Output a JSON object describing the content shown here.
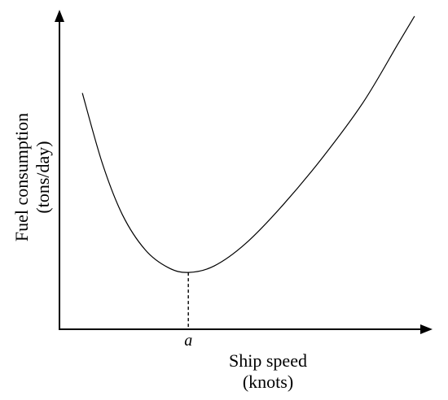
{
  "chart_data": {
    "type": "line",
    "title": "",
    "xlabel": {
      "line1": "Ship speed",
      "line2": "(knots)"
    },
    "ylabel": {
      "line1": "Fuel consumption",
      "line2": "(tons/day)"
    },
    "x_tick_label": "a",
    "x_tick_value": 4.5,
    "xlim": [
      0,
      13
    ],
    "ylim": [
      0,
      10
    ],
    "grid": false,
    "series": [
      {
        "values": [
          {
            "x": 0.8,
            "y": 7.4
          },
          {
            "x": 1.5,
            "y": 5.2
          },
          {
            "x": 2.2,
            "y": 3.6
          },
          {
            "x": 3.0,
            "y": 2.5
          },
          {
            "x": 3.8,
            "y": 1.95
          },
          {
            "x": 4.5,
            "y": 1.8
          },
          {
            "x": 5.4,
            "y": 2.0
          },
          {
            "x": 6.5,
            "y": 2.7
          },
          {
            "x": 7.8,
            "y": 3.9
          },
          {
            "x": 9.2,
            "y": 5.4
          },
          {
            "x": 10.6,
            "y": 7.1
          },
          {
            "x": 11.8,
            "y": 8.9
          },
          {
            "x": 12.4,
            "y": 9.8
          }
        ]
      }
    ]
  }
}
